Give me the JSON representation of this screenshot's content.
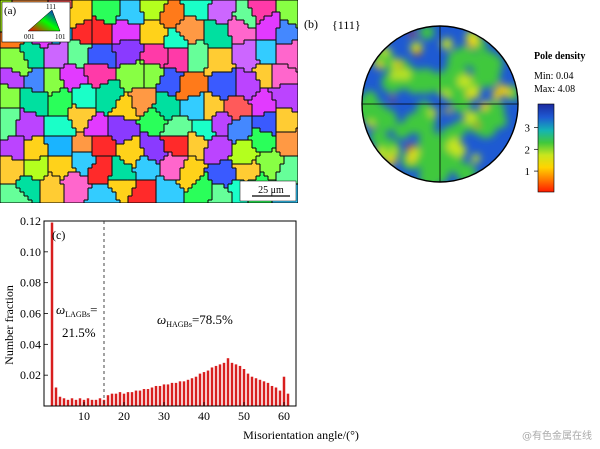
{
  "panel_a": {
    "label": "(a)",
    "ipf_key": {
      "top": "111",
      "left": "001",
      "right": "101"
    },
    "scale_bar": "25 μm"
  },
  "panel_b": {
    "label": "(b)",
    "plane": "{111}",
    "legend_title": "Pole density",
    "min_label": "Min: 0.04",
    "max_label": "Max: 4.08",
    "ticks": [
      "1",
      "2",
      "3"
    ],
    "tick_values": [
      1,
      2,
      3
    ],
    "range": [
      0.04,
      4.08
    ],
    "colors": [
      "#ff1a00",
      "#ff7a00",
      "#ffd400",
      "#c8e61e",
      "#41c83c",
      "#14b4b4",
      "#1e5ad2",
      "#1b2aa0"
    ]
  },
  "chart_data": {
    "type": "bar",
    "label": "(c)",
    "xlabel": "Misorientation angle/(°)",
    "ylabel": "Number fraction",
    "xlim": [
      0,
      63
    ],
    "ylim": [
      0,
      0.12
    ],
    "xticks": [
      10,
      20,
      30,
      40,
      50,
      60
    ],
    "yticks": [
      0.02,
      0.04,
      0.06,
      0.08,
      0.1,
      0.12
    ],
    "ytick_labels": [
      "0.02",
      "0.04",
      "0.06",
      "0.08",
      "0.10",
      "0.12"
    ],
    "bar_width": 1,
    "bar_color": "#d81e1e",
    "threshold": 15,
    "x": [
      2,
      3,
      4,
      5,
      6,
      7,
      8,
      9,
      10,
      11,
      12,
      13,
      14,
      15,
      16,
      17,
      18,
      19,
      20,
      21,
      22,
      23,
      24,
      25,
      26,
      27,
      28,
      29,
      30,
      31,
      32,
      33,
      34,
      35,
      36,
      37,
      38,
      39,
      40,
      41,
      42,
      43,
      44,
      45,
      46,
      47,
      48,
      49,
      50,
      51,
      52,
      53,
      54,
      55,
      56,
      57,
      58,
      59,
      60,
      61
    ],
    "values": [
      0.119,
      0.012,
      0.006,
      0.005,
      0.004,
      0.005,
      0.004,
      0.005,
      0.004,
      0.005,
      0.004,
      0.004,
      0.005,
      0.004,
      0.007,
      0.008,
      0.008,
      0.009,
      0.008,
      0.009,
      0.009,
      0.01,
      0.01,
      0.011,
      0.011,
      0.012,
      0.013,
      0.013,
      0.014,
      0.014,
      0.015,
      0.015,
      0.016,
      0.016,
      0.017,
      0.018,
      0.019,
      0.021,
      0.022,
      0.023,
      0.025,
      0.026,
      0.027,
      0.028,
      0.031,
      0.028,
      0.027,
      0.026,
      0.024,
      0.021,
      0.019,
      0.018,
      0.017,
      0.016,
      0.015,
      0.013,
      0.012,
      0.01,
      0.019,
      0.008
    ],
    "annotations": [
      {
        "symbol": "ω",
        "subscript": "LAGBs",
        "suffix": "=",
        "value": "21.5%"
      },
      {
        "symbol": "ω",
        "subscript": "HAGBs",
        "suffix": "=78.5%"
      }
    ]
  },
  "watermark": "@有色金属在线"
}
